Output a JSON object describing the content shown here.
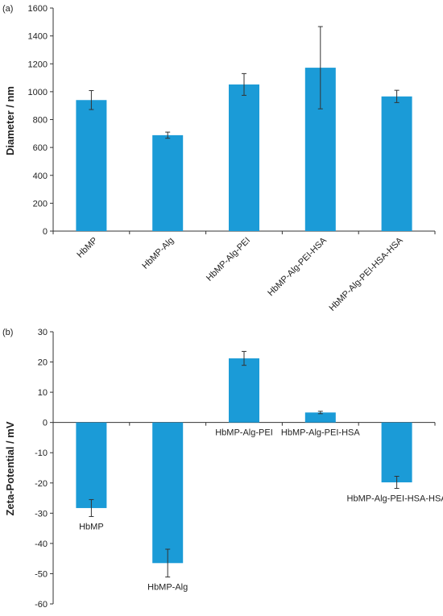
{
  "chart_data": [
    {
      "type": "bar",
      "panel_label": "(a)",
      "categories": [
        "HbMP",
        "HbMP-Alg",
        "HbMP-Alg-PEI",
        "HbMP-Alg-PEI-HSA",
        "HbMP-Alg-PEI-HSA-HSA"
      ],
      "values": [
        940,
        688,
        1052,
        1172,
        966
      ],
      "errors": [
        68,
        22,
        78,
        295,
        44
      ],
      "ylabel": "Diameter / nm",
      "xlabel": "",
      "ylim": [
        0,
        1600
      ],
      "yticks": [
        0,
        200,
        400,
        600,
        800,
        1000,
        1200,
        1400,
        1600
      ],
      "category_label_style": "rotated",
      "color": "#1b9bd7",
      "grid": false,
      "legend": "none"
    },
    {
      "type": "bar",
      "panel_label": "(b)",
      "categories": [
        "HbMP",
        "HbMP-Alg",
        "HbMP-Alg-PEI",
        "HbMP-Alg-PEI-HSA",
        "HbMP-Alg-PEI-HSA-HSA"
      ],
      "values": [
        -28.3,
        -46.5,
        21.2,
        3.3,
        -19.8
      ],
      "errors": [
        2.8,
        4.6,
        2.3,
        0.4,
        2.0
      ],
      "ylabel": "Zeta-Potential / mV",
      "xlabel": "",
      "ylim": [
        -60,
        30
      ],
      "yticks": [
        -60,
        -50,
        -40,
        -30,
        -20,
        -10,
        0,
        10,
        20,
        30
      ],
      "category_label_style": "beside-bar",
      "color": "#1b9bd7",
      "grid": false,
      "legend": "none"
    }
  ]
}
